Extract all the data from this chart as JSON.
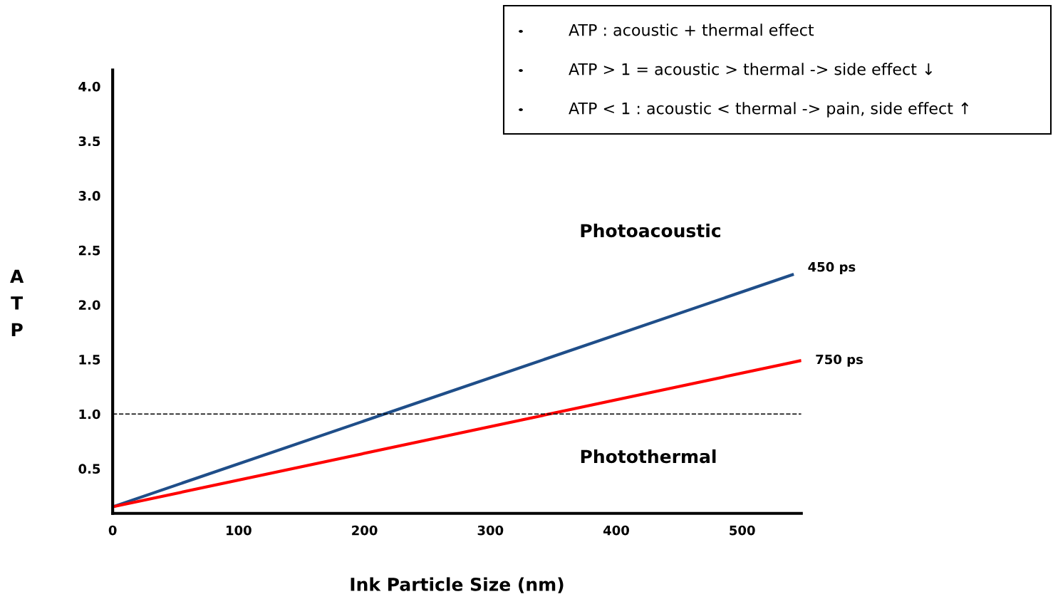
{
  "chart_data": {
    "type": "line",
    "xlabel": "Ink Particle Size (nm)",
    "ylabel": "ATP",
    "xlim": [
      0,
      547
    ],
    "ylim": [
      0.09,
      4.15
    ],
    "xticks": [
      0,
      100,
      200,
      300,
      400,
      500
    ],
    "yticks": [
      {
        "value": 0.5,
        "label": "0.5"
      },
      {
        "value": 1.0,
        "label": "1.0"
      },
      {
        "value": 1.5,
        "label": "1.5"
      },
      {
        "value": 2.0,
        "label": "2.0"
      },
      {
        "value": 2.5,
        "label": "2.5"
      },
      {
        "value": 3.0,
        "label": "3.0"
      },
      {
        "value": 3.5,
        "label": "3.5"
      },
      {
        "value": 4.0,
        "label": "4.0"
      }
    ],
    "grid": false,
    "legend": false,
    "marker": "none",
    "line_style": "solid",
    "series": [
      {
        "name": "450 ps",
        "color": "#1f4e89",
        "x": [
          0,
          541
        ],
        "values": [
          0.15,
          2.28
        ]
      },
      {
        "name": "750 ps",
        "color": "#ff0000",
        "x": [
          0,
          547
        ],
        "values": [
          0.15,
          1.49
        ]
      }
    ],
    "ref_lines": [
      {
        "axis": "y",
        "value": 1.0,
        "label": null,
        "color": "#000000",
        "line_style": "dashed"
      }
    ],
    "annotations": [
      "Photoacoustic",
      "Photothermal",
      "ATP : acoustic + thermal effect",
      "ATP > 1 = acoustic > thermal -> side effect ↓",
      "ATP < 1 : acoustic < thermal -> pain, side effect ↑"
    ]
  }
}
